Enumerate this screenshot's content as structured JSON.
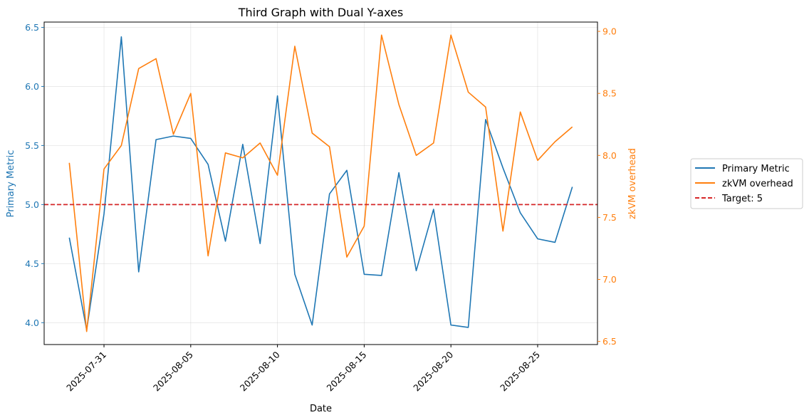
{
  "chart_data": {
    "type": "line",
    "title": "Third Graph with Dual Y-axes",
    "xlabel": "Date",
    "ylabel_left": "Primary Metric",
    "ylabel_right": "zkVM overhead",
    "dates": [
      "2025-07-29",
      "2025-07-30",
      "2025-07-31",
      "2025-08-01",
      "2025-08-02",
      "2025-08-03",
      "2025-08-04",
      "2025-08-05",
      "2025-08-06",
      "2025-08-07",
      "2025-08-08",
      "2025-08-09",
      "2025-08-10",
      "2025-08-11",
      "2025-08-12",
      "2025-08-13",
      "2025-08-14",
      "2025-08-15",
      "2025-08-16",
      "2025-08-17",
      "2025-08-18",
      "2025-08-19",
      "2025-08-20",
      "2025-08-21",
      "2025-08-22",
      "2025-08-23",
      "2025-08-24",
      "2025-08-25",
      "2025-08-26",
      "2025-08-27"
    ],
    "x_ticks": [
      "2025-07-31",
      "2025-08-05",
      "2025-08-10",
      "2025-08-15",
      "2025-08-20",
      "2025-08-25"
    ],
    "left_axis": {
      "ylim": [
        3.815,
        6.545
      ],
      "ticks": [
        "4.0",
        "4.5",
        "5.0",
        "5.5",
        "6.0",
        "6.5"
      ],
      "color": "#1f77b4"
    },
    "right_axis": {
      "ylim": [
        6.475,
        9.075
      ],
      "ticks": [
        "6.5",
        "7.0",
        "7.5",
        "8.0",
        "8.5",
        "9.0"
      ],
      "color": "#ff7f0e"
    },
    "series": [
      {
        "name": "Primary Metric",
        "axis": "left",
        "color": "#1f77b4",
        "values": [
          4.72,
          3.94,
          4.92,
          6.42,
          4.43,
          5.55,
          5.58,
          5.56,
          5.34,
          4.69,
          5.51,
          4.67,
          5.92,
          4.41,
          3.98,
          5.09,
          5.29,
          4.41,
          4.4,
          5.27,
          4.44,
          4.96,
          3.98,
          3.96,
          5.72,
          5.31,
          4.93,
          4.71,
          4.68,
          5.15
        ]
      },
      {
        "name": "zkVM overhead",
        "axis": "right",
        "color": "#ff7f0e",
        "values": [
          7.94,
          6.58,
          7.89,
          8.08,
          8.7,
          8.78,
          8.17,
          8.5,
          7.19,
          8.02,
          7.98,
          8.1,
          7.84,
          8.88,
          8.18,
          8.07,
          7.18,
          7.43,
          8.97,
          8.41,
          8.0,
          8.1,
          8.97,
          8.51,
          8.39,
          7.39,
          8.35,
          7.96,
          8.11,
          8.23
        ]
      }
    ],
    "target": {
      "name": "Target: 5",
      "value": 5,
      "axis": "left",
      "color": "#d62728",
      "style": "dashed"
    },
    "grid": true,
    "legend_placement": "right, outside plot"
  }
}
